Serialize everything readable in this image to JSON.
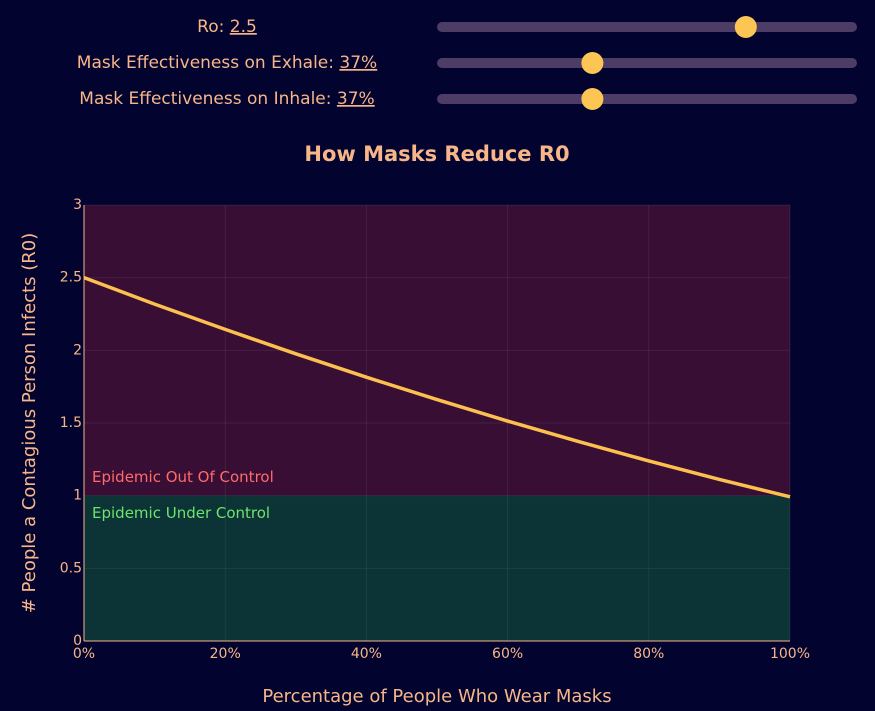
{
  "controls": [
    {
      "label": "Ro:",
      "value": 2.5,
      "value_label": "2.5",
      "range": [
        0,
        3.4
      ]
    },
    {
      "label": "Mask Effectiveness on Exhale:",
      "value": 37,
      "value_label": "37%",
      "range": [
        0,
        100
      ]
    },
    {
      "label": "Mask Effectiveness on Inhale:",
      "value": 37,
      "value_label": "37%",
      "range": [
        0,
        100
      ]
    }
  ],
  "chart_data": {
    "type": "line",
    "title": "How Masks Reduce R0",
    "x_label": "Percentage of People Who Wear Masks",
    "y_label": "# People a Contagious Person Infects (R0)",
    "x": [
      0,
      10,
      20,
      30,
      40,
      50,
      60,
      70,
      80,
      90,
      100
    ],
    "series": [
      {
        "name": "R0",
        "color": "#fdc04e",
        "values": [
          2.5,
          2.318,
          2.144,
          1.976,
          1.815,
          1.661,
          1.513,
          1.373,
          1.239,
          1.112,
          0.992
        ]
      }
    ],
    "regions": [
      {
        "name": "Epidemic Out Of Control",
        "from": 1,
        "to": 3,
        "color": "#380e35",
        "label_color": "#ff6a6a"
      },
      {
        "name": "Epidemic Under Control",
        "from": 0,
        "to": 1,
        "color": "#0c3335",
        "label_color": "#6ee36e"
      }
    ],
    "xlim": [
      0,
      100
    ],
    "xticks": [
      {
        "value": 0,
        "label": "0%"
      },
      {
        "value": 20,
        "label": "20%"
      },
      {
        "value": 40,
        "label": "40%"
      },
      {
        "value": 60,
        "label": "60%"
      },
      {
        "value": 80,
        "label": "80%"
      },
      {
        "value": 100,
        "label": "100%"
      }
    ],
    "ylim": [
      0,
      3
    ],
    "yticks": [
      0,
      0.5,
      1,
      1.5,
      2,
      2.5,
      3
    ],
    "grid": true
  }
}
